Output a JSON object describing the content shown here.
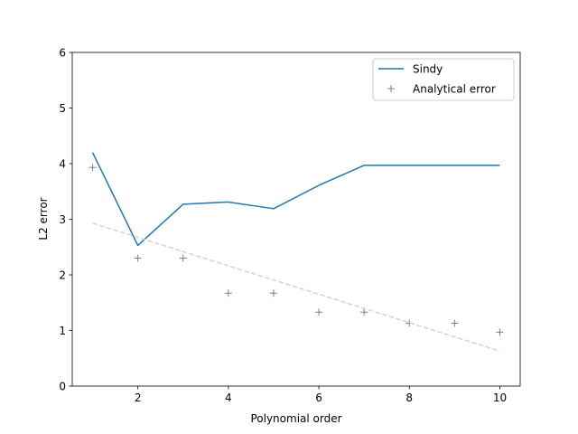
{
  "chart_data": {
    "type": "line",
    "xlabel": "Polynomial order",
    "ylabel": "L2 error",
    "xlim": [
      0.55,
      10.45
    ],
    "ylim": [
      0,
      6
    ],
    "xticks": [
      2,
      4,
      6,
      8,
      10
    ],
    "yticks": [
      0,
      1,
      2,
      3,
      4,
      5,
      6
    ],
    "grid": false,
    "legend_position": "top-right",
    "x": [
      1,
      2,
      3,
      4,
      5,
      6,
      7,
      8,
      9,
      10
    ],
    "series": [
      {
        "name": "Sindy",
        "kind": "line",
        "color": "#1f77b4",
        "values": [
          4.2,
          2.53,
          3.27,
          3.31,
          3.19,
          3.61,
          3.97,
          3.97,
          3.97,
          3.97
        ]
      },
      {
        "name": "Analytical error",
        "kind": "marker",
        "marker": "+",
        "color": "#808080",
        "values": [
          3.93,
          2.3,
          2.3,
          1.67,
          1.67,
          1.33,
          1.33,
          1.13,
          1.13,
          0.97
        ]
      },
      {
        "kind": "dashed-line",
        "color": "#d3d3d3",
        "x": [
          1,
          10
        ],
        "values": [
          2.93,
          0.63
        ]
      }
    ]
  }
}
